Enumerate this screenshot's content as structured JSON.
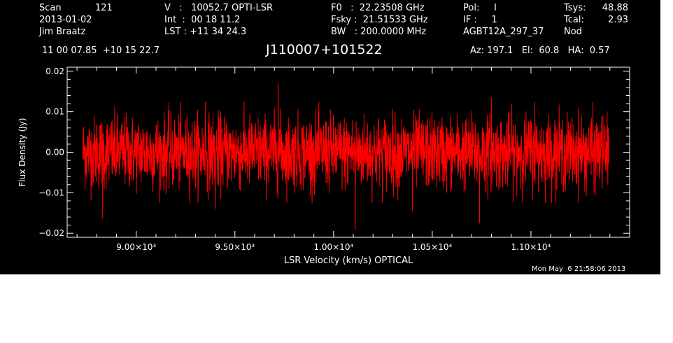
{
  "header": {
    "col1": {
      "line1_label": "Scan",
      "line1_value": "121",
      "line2": "2013-01-02",
      "line3": "Jim Braatz"
    },
    "col2": {
      "line1": "V   :   10052.7 OPTI-LSR",
      "line2": "Int  :  00 18 11.2",
      "line3": "LST : +11 34 24.3"
    },
    "col3": {
      "line1": "F0   :  22.23508 GHz",
      "line2": "Fsky :  21.51533 GHz",
      "line3": "BW   : 200.0000 MHz"
    },
    "col4": {
      "line1": "Pol:     I",
      "line2": "IF :     1",
      "line3": "AGBT12A_297_37"
    },
    "col5": {
      "line1_label": "Tsys:",
      "line1_value": "48.88",
      "line2_label": "Tcal:",
      "line2_value": "2.93",
      "line3": "Nod"
    },
    "coords": "11 00 07.85  +10 15 22.7",
    "source": "J110007+101522",
    "pointing": "Az: 197.1   El:  60.8   HA:  0.57",
    "timestamp": "Mon May  6 21:58:06 2013"
  },
  "chart_data": {
    "type": "line",
    "title": "J110007+101522",
    "xlabel": "LSR Velocity (km/s) OPTICAL",
    "ylabel": "Flux Density (Jy)",
    "xlim": [
      8650,
      11500
    ],
    "ylim": [
      -0.021,
      0.021
    ],
    "data_x_range": [
      8730,
      11395
    ],
    "x_ticks": [
      {
        "value": 9000,
        "label": "9.00×10³"
      },
      {
        "value": 9500,
        "label": "9.50×10³"
      },
      {
        "value": 10000,
        "label": "1.00×10⁴"
      },
      {
        "value": 10500,
        "label": "1.05×10⁴"
      },
      {
        "value": 11000,
        "label": "1.10×10⁴"
      }
    ],
    "y_ticks": [
      {
        "value": 0.02,
        "label": "0.02"
      },
      {
        "value": 0.01,
        "label": "0.01"
      },
      {
        "value": 0.0,
        "label": "0.00"
      },
      {
        "value": -0.01,
        "label": "−0.01"
      },
      {
        "value": -0.02,
        "label": "−0.02"
      }
    ],
    "noise_level_jy": 0.0045,
    "peak_points": [
      {
        "x": 9720,
        "y": 0.017
      },
      {
        "x": 9350,
        "y": 0.0125
      },
      {
        "x": 10800,
        "y": 0.0135
      },
      {
        "x": 11020,
        "y": 0.0125
      },
      {
        "x": 10110,
        "y": -0.019
      },
      {
        "x": 8830,
        "y": -0.0165
      },
      {
        "x": 10740,
        "y": -0.0175
      },
      {
        "x": 9400,
        "y": -0.014
      },
      {
        "x": 10400,
        "y": -0.0145
      }
    ],
    "series": [
      {
        "color": "#ff0000"
      }
    ],
    "grid": false,
    "legend": "none"
  }
}
